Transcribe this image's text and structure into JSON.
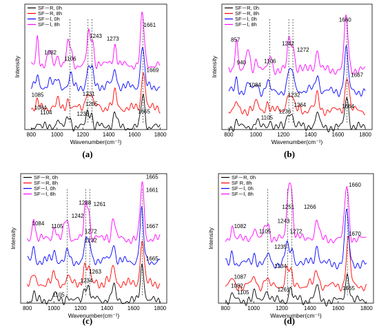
{
  "chart_data": [
    {
      "type": "line",
      "panel_label": "(a)",
      "xlabel": "Wavenumber(cm⁻¹)",
      "ylabel": "Intensity",
      "xlim": [
        750,
        1850
      ],
      "xticks": [
        800,
        1000,
        1200,
        1400,
        1600,
        1800
      ],
      "yticks_shown": false,
      "legend_position": "top-left",
      "series": [
        {
          "name": "SF－R, 0h",
          "color": "#000000",
          "offset": 0.02,
          "peaks": [
            [
              848,
              0.05
            ],
            [
              1004,
              0.07
            ],
            [
              1084,
              0.08
            ],
            [
              1104,
              0.05
            ],
            [
              1235,
              0.13
            ],
            [
              1265,
              0.12
            ],
            [
              1448,
              0.1
            ],
            [
              1665,
              0.28
            ]
          ]
        },
        {
          "name": "SF－R, 8h",
          "color": "#ff0000",
          "offset": 0.18,
          "peaks": [
            [
              848,
              0.05
            ],
            [
              1004,
              0.06
            ],
            [
              1085,
              0.08
            ],
            [
              1231,
              0.14
            ],
            [
              1265,
              0.12
            ],
            [
              1448,
              0.1
            ],
            [
              1669,
              0.32
            ]
          ]
        },
        {
          "name": "SF－Ⅰ, 0h",
          "color": "#0000ff",
          "offset": 0.36,
          "peaks": [
            [
              848,
              0.08
            ],
            [
              940,
              0.05
            ],
            [
              1004,
              0.07
            ],
            [
              1106,
              0.09
            ],
            [
              1243,
              0.16
            ],
            [
              1273,
              0.14
            ],
            [
              1448,
              0.12
            ],
            [
              1661,
              0.34
            ]
          ]
        },
        {
          "name": "SF－Ⅰ, 8h",
          "color": "#ff00ff",
          "offset": 0.54,
          "peaks": [
            [
              848,
              0.25
            ],
            [
              940,
              0.12
            ],
            [
              1004,
              0.09
            ],
            [
              1082,
              0.15
            ],
            [
              1106,
              0.13
            ],
            [
              1243,
              0.26
            ],
            [
              1273,
              0.22
            ],
            [
              1448,
              0.14
            ],
            [
              1661,
              0.42
            ]
          ]
        }
      ],
      "annotations": [
        "1243",
        "1273",
        "1661",
        "1082",
        "1106",
        "1669",
        "1085",
        "1231",
        "1084",
        "1104",
        "1235",
        "1265",
        "1665"
      ]
    },
    {
      "type": "line",
      "panel_label": "(b)",
      "xlabel": "Wavenumber(cm⁻¹)",
      "ylabel": "Intensity",
      "xlim": [
        750,
        1850
      ],
      "xticks": [
        800,
        1000,
        1200,
        1400,
        1600,
        1800
      ],
      "yticks_shown": false,
      "legend_position": "top-left",
      "series": [
        {
          "name": "SF－R, 0h",
          "color": "#000000",
          "offset": 0.02,
          "peaks": [
            [
              857,
              0.05
            ],
            [
              1004,
              0.06
            ],
            [
              1105,
              0.06
            ],
            [
              1236,
              0.12
            ],
            [
              1264,
              0.11
            ],
            [
              1448,
              0.09
            ],
            [
              1664,
              0.26
            ]
          ]
        },
        {
          "name": "SF－R, 8h",
          "color": "#ff0000",
          "offset": 0.16,
          "peaks": [
            [
              857,
              0.06
            ],
            [
              1004,
              0.07
            ],
            [
              1084,
              0.07
            ],
            [
              1232,
              0.14
            ],
            [
              1264,
              0.12
            ],
            [
              1448,
              0.1
            ],
            [
              1667,
              0.3
            ]
          ]
        },
        {
          "name": "SF－Ⅰ, 0h",
          "color": "#0000ff",
          "offset": 0.32,
          "peaks": [
            [
              857,
              0.1
            ],
            [
              940,
              0.06
            ],
            [
              1004,
              0.07
            ],
            [
              1084,
              0.08
            ],
            [
              1242,
              0.18
            ],
            [
              1272,
              0.14
            ],
            [
              1448,
              0.12
            ],
            [
              1660,
              0.36
            ]
          ]
        },
        {
          "name": "SF－Ⅰ, 8h",
          "color": "#ff00ff",
          "offset": 0.5,
          "peaks": [
            [
              857,
              0.28
            ],
            [
              940,
              0.17
            ],
            [
              1004,
              0.1
            ],
            [
              1106,
              0.12
            ],
            [
              1242,
              0.26
            ],
            [
              1272,
              0.2
            ],
            [
              1448,
              0.14
            ],
            [
              1660,
              0.44
            ]
          ]
        }
      ],
      "annotations": [
        "1660",
        "857",
        "1242",
        "1272",
        "940",
        "1106",
        "1084",
        "1667",
        "1232",
        "1264",
        "1236",
        "1105",
        "1664"
      ]
    },
    {
      "type": "line",
      "panel_label": "(c)",
      "xlabel": "Wavenumber(cm⁻¹)",
      "ylabel": "Intensity",
      "xlim": [
        750,
        1850
      ],
      "xticks": [
        800,
        1000,
        1200,
        1400,
        1600,
        1800
      ],
      "yticks_shown": false,
      "legend_position": "top-left",
      "series": [
        {
          "name": "SF－R, 0h",
          "color": "#000000",
          "offset": 0.02,
          "peaks": [
            [
              848,
              0.06
            ],
            [
              1004,
              0.06
            ],
            [
              1105,
              0.05
            ],
            [
              1234,
              0.12
            ],
            [
              1263,
              0.11
            ],
            [
              1448,
              0.09
            ],
            [
              1665,
              0.3
            ]
          ]
        },
        {
          "name": "SF－R, 8h",
          "color": "#ff0000",
          "offset": 0.16,
          "peaks": [
            [
              848,
              0.07
            ],
            [
              1004,
              0.08
            ],
            [
              1105,
              0.06
            ],
            [
              1232,
              0.15
            ],
            [
              1263,
              0.12
            ],
            [
              1448,
              0.11
            ],
            [
              1665,
              0.36
            ]
          ]
        },
        {
          "name": "SF－Ⅰ, 0h",
          "color": "#0000ff",
          "offset": 0.34,
          "peaks": [
            [
              848,
              0.12
            ],
            [
              1004,
              0.09
            ],
            [
              1105,
              0.08
            ],
            [
              1242,
              0.18
            ],
            [
              1272,
              0.14
            ],
            [
              1448,
              0.12
            ],
            [
              1661,
              0.4
            ]
          ]
        },
        {
          "name": "SF－Ⅰ, 8h",
          "color": "#ff00ff",
          "offset": 0.52,
          "peaks": [
            [
              848,
              0.2
            ],
            [
              1004,
              0.11
            ],
            [
              1084,
              0.12
            ],
            [
              1105,
              0.11
            ],
            [
              1238,
              0.25
            ],
            [
              1261,
              0.22
            ],
            [
              1448,
              0.15
            ],
            [
              1665,
              0.46
            ]
          ]
        }
      ],
      "annotations": [
        "1665",
        "1661",
        "1238",
        "1261",
        "1242",
        "1084",
        "1105",
        "1667",
        "1272",
        "1232",
        "1665",
        "1263",
        "1234",
        "1105"
      ]
    },
    {
      "type": "line",
      "panel_label": "(d)",
      "xlabel": "Wavenumber(cm⁻¹)",
      "ylabel": "Intensity",
      "xlim": [
        750,
        1850
      ],
      "xticks": [
        800,
        1000,
        1200,
        1400,
        1600,
        1800
      ],
      "yticks_shown": false,
      "legend_position": "top-left",
      "series": [
        {
          "name": "SF－R, 0h",
          "color": "#000000",
          "offset": 0.02,
          "peaks": [
            [
              848,
              0.05
            ],
            [
              1004,
              0.06
            ],
            [
              1082,
              0.07
            ],
            [
              1105,
              0.05
            ],
            [
              1261,
              0.11
            ],
            [
              1448,
              0.08
            ],
            [
              1665,
              0.22
            ]
          ]
        },
        {
          "name": "SF  R, 8h",
          "color": "#ff0000",
          "offset": 0.14,
          "peaks": [
            [
              848,
              0.06
            ],
            [
              1004,
              0.07
            ],
            [
              1087,
              0.07
            ],
            [
              1234,
              0.13
            ],
            [
              1261,
              0.11
            ],
            [
              1448,
              0.1
            ],
            [
              1670,
              0.38
            ]
          ]
        },
        {
          "name": "SF－Ⅰ, 0h",
          "color": "#0000ff",
          "offset": 0.32,
          "peaks": [
            [
              848,
              0.1
            ],
            [
              1004,
              0.08
            ],
            [
              1105,
              0.08
            ],
            [
              1235,
              0.16
            ],
            [
              1272,
              0.13
            ],
            [
              1448,
              0.12
            ],
            [
              1660,
              0.42
            ]
          ]
        },
        {
          "name": "SF－Ⅰ, 8h",
          "color": "#ff00ff",
          "offset": 0.52,
          "peaks": [
            [
              848,
              0.12
            ],
            [
              1004,
              0.09
            ],
            [
              1082,
              0.1
            ],
            [
              1105,
              0.1
            ],
            [
              1243,
              0.2
            ],
            [
              1251,
              0.2
            ],
            [
              1266,
              0.18
            ],
            [
              1272,
              0.15
            ],
            [
              1448,
              0.13
            ],
            [
              1660,
              0.44
            ]
          ]
        }
      ],
      "annotations": [
        "1660",
        "1251",
        "1266",
        "1243",
        "1082",
        "1105",
        "1272",
        "1670",
        "1235",
        "1234",
        "1087",
        "1082",
        "1105",
        "1261",
        "1665"
      ]
    }
  ]
}
